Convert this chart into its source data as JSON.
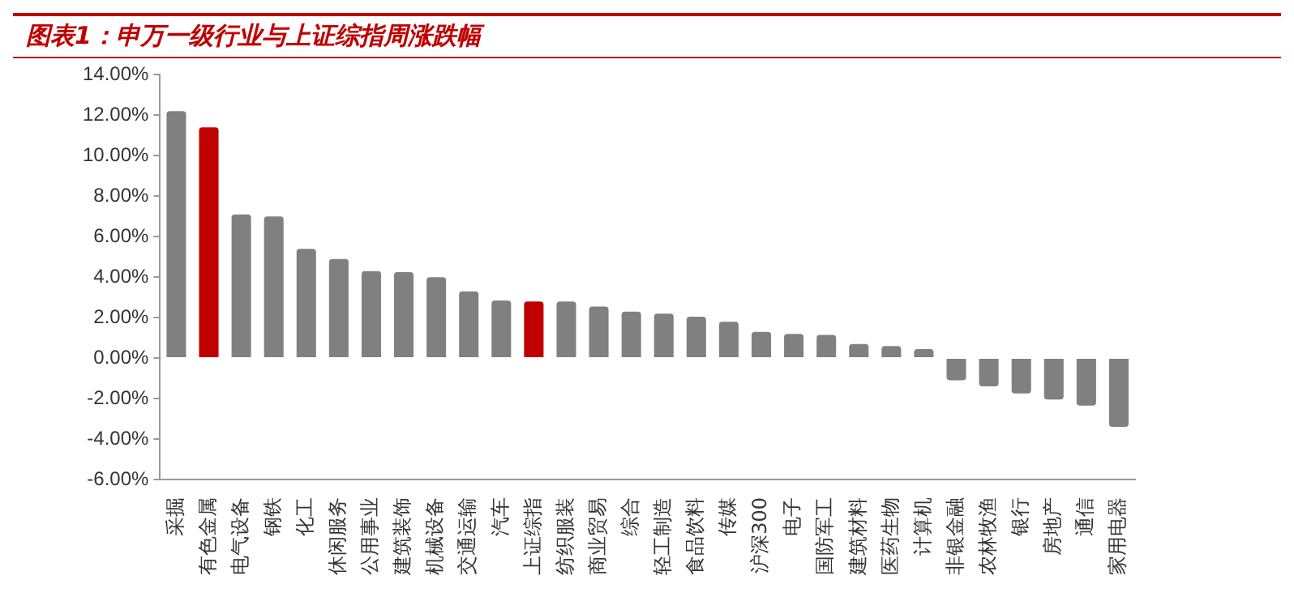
{
  "chart_data": {
    "type": "bar",
    "title": "图表1：申万一级行业与上证综指周涨跌幅",
    "categories": [
      "采掘",
      "有色金属",
      "电气设备",
      "钢铁",
      "化工",
      "休闲服务",
      "公用事业",
      "建筑装饰",
      "机械设备",
      "交通运输",
      "汽车",
      "上证综指",
      "纺织服装",
      "商业贸易",
      "综合",
      "轻工制造",
      "食品饮料",
      "传媒",
      "沪深300",
      "电子",
      "国防军工",
      "建筑材料",
      "医药生物",
      "计算机",
      "非银金融",
      "农林牧渔",
      "银行",
      "房地产",
      "通信",
      "家用电器"
    ],
    "values": [
      12.2,
      11.4,
      7.1,
      7.0,
      5.4,
      4.9,
      4.3,
      4.25,
      4.0,
      3.3,
      2.85,
      2.8,
      2.8,
      2.55,
      2.3,
      2.2,
      2.05,
      1.8,
      1.3,
      1.2,
      1.15,
      0.7,
      0.6,
      0.45,
      -1.1,
      -1.4,
      -1.75,
      -2.05,
      -2.35,
      -3.4
    ],
    "colors": [
      "#808080",
      "#c00000",
      "#808080",
      "#808080",
      "#808080",
      "#808080",
      "#808080",
      "#808080",
      "#808080",
      "#808080",
      "#808080",
      "#c00000",
      "#808080",
      "#808080",
      "#808080",
      "#808080",
      "#808080",
      "#808080",
      "#808080",
      "#808080",
      "#808080",
      "#808080",
      "#808080",
      "#808080",
      "#808080",
      "#808080",
      "#808080",
      "#808080",
      "#808080",
      "#808080"
    ],
    "ylim": [
      -6,
      14
    ],
    "yticks": [
      {
        "value": -6,
        "label": "-6.00%"
      },
      {
        "value": -4,
        "label": "-4.00%"
      },
      {
        "value": -2,
        "label": "-2.00%"
      },
      {
        "value": 0,
        "label": "0.00%"
      },
      {
        "value": 2,
        "label": "2.00%"
      },
      {
        "value": 4,
        "label": "4.00%"
      },
      {
        "value": 6,
        "label": "6.00%"
      },
      {
        "value": 8,
        "label": "8.00%"
      },
      {
        "value": 10,
        "label": "10.00%"
      },
      {
        "value": 12,
        "label": "12.00%"
      },
      {
        "value": 14,
        "label": "14.00%"
      }
    ],
    "grid": false,
    "legend": false
  }
}
